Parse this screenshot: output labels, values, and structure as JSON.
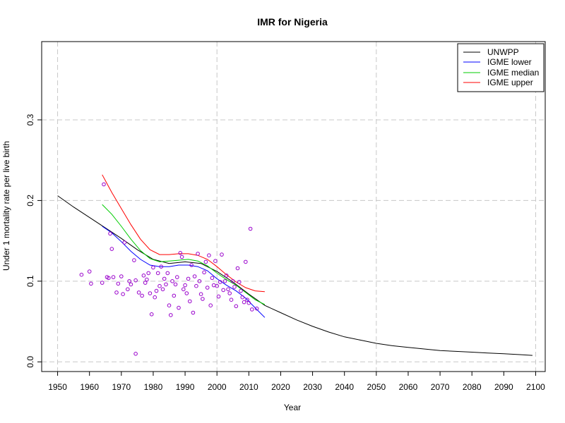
{
  "chart_data": {
    "type": "line",
    "title": "IMR for Nigeria",
    "xlabel": "Year",
    "ylabel": "Under 1 mortality rate per live birth",
    "xlim": [
      1945,
      2103
    ],
    "ylim": [
      -0.012,
      0.397
    ],
    "x_ticks": [
      1950,
      1960,
      1970,
      1980,
      1990,
      2000,
      2010,
      2020,
      2030,
      2040,
      2050,
      2060,
      2070,
      2080,
      2090,
      2100
    ],
    "y_ticks": [
      0.0,
      0.1,
      0.2,
      0.3
    ],
    "y_tick_labels": [
      "0.0",
      "0.1",
      "0.2",
      "0.3"
    ],
    "grid": true,
    "grid_x": [
      1950,
      2000,
      2050,
      2100
    ],
    "grid_y": [
      0.0,
      0.1,
      0.2,
      0.3
    ],
    "legend_position": "top-right",
    "series": [
      {
        "name": "UNWPP",
        "color": "#000000",
        "x": [
          1950,
          1955,
          1960,
          1965,
          1970,
          1975,
          1980,
          1985,
          1990,
          1995,
          2000,
          2005,
          2010,
          2015,
          2020,
          2025,
          2030,
          2035,
          2040,
          2045,
          2050,
          2055,
          2060,
          2065,
          2070,
          2075,
          2080,
          2085,
          2090,
          2095,
          2099
        ],
        "y": [
          0.206,
          0.192,
          0.179,
          0.166,
          0.153,
          0.139,
          0.127,
          0.122,
          0.124,
          0.122,
          0.112,
          0.099,
          0.084,
          0.07,
          0.061,
          0.052,
          0.044,
          0.037,
          0.031,
          0.027,
          0.023,
          0.02,
          0.018,
          0.016,
          0.014,
          0.013,
          0.012,
          0.011,
          0.01,
          0.009,
          0.008
        ]
      },
      {
        "name": "IGME lower",
        "color": "#0000ff",
        "x": [
          1964,
          1967,
          1970,
          1973,
          1976,
          1979,
          1982,
          1985,
          1988,
          1991,
          1994,
          1997,
          2000,
          2003,
          2006,
          2009,
          2012,
          2015
        ],
        "y": [
          0.168,
          0.16,
          0.149,
          0.137,
          0.127,
          0.12,
          0.118,
          0.118,
          0.12,
          0.12,
          0.118,
          0.113,
          0.103,
          0.095,
          0.088,
          0.079,
          0.067,
          0.055
        ]
      },
      {
        "name": "IGME median",
        "color": "#00cc00",
        "x": [
          1964,
          1967,
          1970,
          1973,
          1976,
          1979,
          1982,
          1985,
          1988,
          1991,
          1994,
          1997,
          2000,
          2003,
          2006,
          2009,
          2012,
          2015
        ],
        "y": [
          0.195,
          0.183,
          0.168,
          0.152,
          0.138,
          0.128,
          0.124,
          0.125,
          0.126,
          0.127,
          0.125,
          0.119,
          0.11,
          0.102,
          0.095,
          0.086,
          0.077,
          0.071
        ]
      },
      {
        "name": "IGME upper",
        "color": "#ff0000",
        "x": [
          1964,
          1967,
          1970,
          1973,
          1976,
          1979,
          1982,
          1985,
          1988,
          1991,
          1994,
          1997,
          2000,
          2003,
          2006,
          2009,
          2012,
          2015
        ],
        "y": [
          0.232,
          0.21,
          0.19,
          0.17,
          0.152,
          0.139,
          0.133,
          0.133,
          0.134,
          0.134,
          0.132,
          0.127,
          0.118,
          0.108,
          0.099,
          0.092,
          0.088,
          0.087
        ]
      }
    ],
    "scatter": {
      "color": "#9900cc",
      "points": [
        [
          1957.5,
          0.108
        ],
        [
          1960,
          0.112
        ],
        [
          1960.5,
          0.097
        ],
        [
          1964,
          0.098
        ],
        [
          1964.5,
          0.22
        ],
        [
          1965.5,
          0.105
        ],
        [
          1966,
          0.104
        ],
        [
          1966.5,
          0.159
        ],
        [
          1967,
          0.14
        ],
        [
          1967.5,
          0.105
        ],
        [
          1968.5,
          0.086
        ],
        [
          1969,
          0.097
        ],
        [
          1970,
          0.106
        ],
        [
          1970.5,
          0.084
        ],
        [
          1971,
          0.148
        ],
        [
          1972,
          0.09
        ],
        [
          1972.5,
          0.1
        ],
        [
          1973,
          0.096
        ],
        [
          1974,
          0.126
        ],
        [
          1974.5,
          0.101
        ],
        [
          1974.5,
          0.01
        ],
        [
          1975.5,
          0.086
        ],
        [
          1976.5,
          0.082
        ],
        [
          1977,
          0.107
        ],
        [
          1977.5,
          0.098
        ],
        [
          1978,
          0.102
        ],
        [
          1978.5,
          0.11
        ],
        [
          1979,
          0.085
        ],
        [
          1979.5,
          0.059
        ],
        [
          1980,
          0.117
        ],
        [
          1980.5,
          0.08
        ],
        [
          1981,
          0.088
        ],
        [
          1981.5,
          0.11
        ],
        [
          1982,
          0.094
        ],
        [
          1982.5,
          0.118
        ],
        [
          1983,
          0.09
        ],
        [
          1983.5,
          0.103
        ],
        [
          1984,
          0.096
        ],
        [
          1984.5,
          0.11
        ],
        [
          1985,
          0.07
        ],
        [
          1985.5,
          0.058
        ],
        [
          1986,
          0.1
        ],
        [
          1986.5,
          0.082
        ],
        [
          1987,
          0.096
        ],
        [
          1987.5,
          0.105
        ],
        [
          1988,
          0.067
        ],
        [
          1988.5,
          0.135
        ],
        [
          1989,
          0.13
        ],
        [
          1989.5,
          0.09
        ],
        [
          1990,
          0.095
        ],
        [
          1990.5,
          0.085
        ],
        [
          1991,
          0.103
        ],
        [
          1991.5,
          0.075
        ],
        [
          1992,
          0.12
        ],
        [
          1992.5,
          0.061
        ],
        [
          1993,
          0.106
        ],
        [
          1993.5,
          0.094
        ],
        [
          1994,
          0.134
        ],
        [
          1994.5,
          0.1
        ],
        [
          1995,
          0.084
        ],
        [
          1995.5,
          0.078
        ],
        [
          1996,
          0.111
        ],
        [
          1996.5,
          0.124
        ],
        [
          1997,
          0.092
        ],
        [
          1997.5,
          0.132
        ],
        [
          1998,
          0.07
        ],
        [
          1998.5,
          0.104
        ],
        [
          1999,
          0.095
        ],
        [
          1999.5,
          0.125
        ],
        [
          2000,
          0.094
        ],
        [
          2000.5,
          0.081
        ],
        [
          2001,
          0.099
        ],
        [
          2001.5,
          0.133
        ],
        [
          2002,
          0.089
        ],
        [
          2002.5,
          0.1
        ],
        [
          2003,
          0.107
        ],
        [
          2003.5,
          0.09
        ],
        [
          2004,
          0.085
        ],
        [
          2004.5,
          0.077
        ],
        [
          2005,
          0.1
        ],
        [
          2005.5,
          0.093
        ],
        [
          2006,
          0.069
        ],
        [
          2006.5,
          0.116
        ],
        [
          2007,
          0.099
        ],
        [
          2007.5,
          0.088
        ],
        [
          2008,
          0.08
        ],
        [
          2008.5,
          0.074
        ],
        [
          2009,
          0.124
        ],
        [
          2009.5,
          0.077
        ],
        [
          2010,
          0.073
        ],
        [
          2010.5,
          0.165
        ],
        [
          2011,
          0.065
        ],
        [
          2012.5,
          0.066
        ]
      ]
    }
  }
}
